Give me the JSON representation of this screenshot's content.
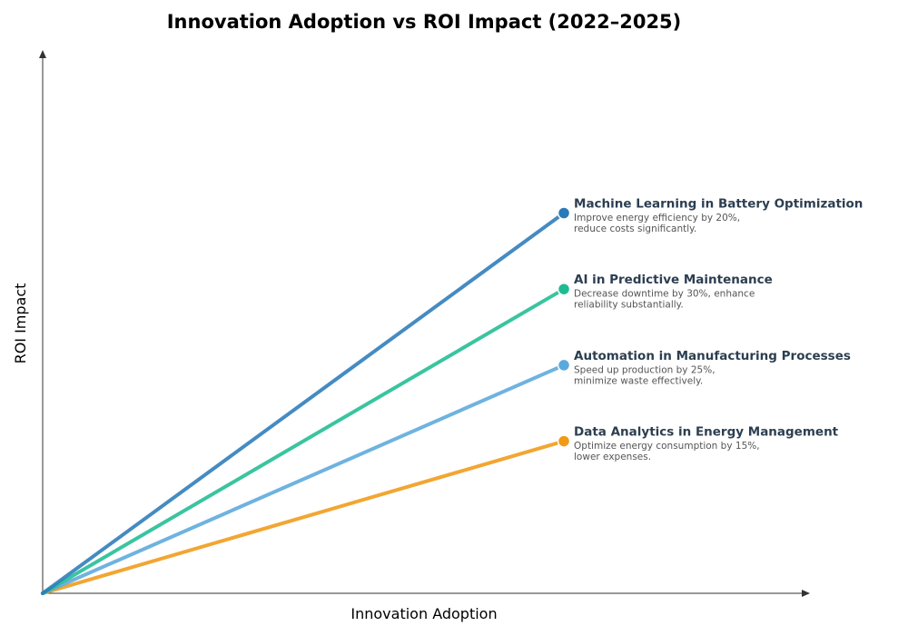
{
  "chart_data": {
    "type": "line",
    "title": "Innovation Adoption vs ROI Impact (2022–2025)",
    "xlabel": "Innovation Adoption",
    "ylabel": "ROI Impact",
    "xlim": [
      0,
      10
    ],
    "ylim": [
      0,
      10
    ],
    "grid": false,
    "series": [
      {
        "name": "Machine Learning in Battery Optimization",
        "description_lines": [
          "Improve energy efficiency by 20%,",
          "reduce costs significantly."
        ],
        "color": "#2b7bb9",
        "points": [
          {
            "x": 0,
            "y": 0
          },
          {
            "x": 6.85,
            "y": 7.5
          }
        ]
      },
      {
        "name": "AI in Predictive Maintenance",
        "description_lines": [
          "Decrease downtime by 30%, enhance",
          "reliability substantially."
        ],
        "color": "#1fbc93",
        "points": [
          {
            "x": 0,
            "y": 0
          },
          {
            "x": 6.85,
            "y": 6.0
          }
        ]
      },
      {
        "name": "Automation in Manufacturing Processes",
        "description_lines": [
          "Speed up production by 25%,",
          "minimize waste effectively."
        ],
        "color": "#5aa9dc",
        "points": [
          {
            "x": 0,
            "y": 0
          },
          {
            "x": 6.85,
            "y": 4.5
          }
        ]
      },
      {
        "name": "Data Analytics in Energy Management",
        "description_lines": [
          "Optimize energy consumption by 15%,",
          "lower expenses."
        ],
        "color": "#f09a16",
        "points": [
          {
            "x": 0,
            "y": 0
          },
          {
            "x": 6.85,
            "y": 3.0
          }
        ]
      }
    ]
  }
}
